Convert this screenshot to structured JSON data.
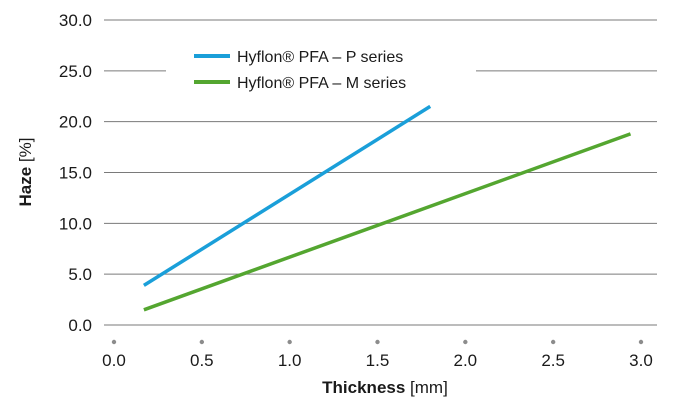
{
  "chart_data": {
    "type": "line",
    "xlabel_bold": "Thickness",
    "xlabel_unit": "[mm]",
    "ylabel_bold": "Haze",
    "ylabel_unit": "[%]",
    "xlim": [
      0.0,
      3.0
    ],
    "ylim": [
      0.0,
      30.0
    ],
    "x_ticks": [
      "0.0",
      "0.5",
      "1.0",
      "1.5",
      "2.0",
      "2.5",
      "3.0"
    ],
    "y_ticks": [
      "0.0",
      "5.0",
      "10.0",
      "15.0",
      "20.0",
      "25.0",
      "30.0"
    ],
    "grid": "horizontal",
    "legend_position": "top-left",
    "series": [
      {
        "name": "Hyflon® PFA – P series",
        "color": "#1a9fd9",
        "x": [
          0.17,
          1.8
        ],
        "y": [
          3.9,
          21.5
        ]
      },
      {
        "name": "Hyflon® PFA – M series",
        "color": "#54a630",
        "x": [
          0.17,
          2.94
        ],
        "y": [
          1.5,
          18.8
        ]
      }
    ]
  }
}
